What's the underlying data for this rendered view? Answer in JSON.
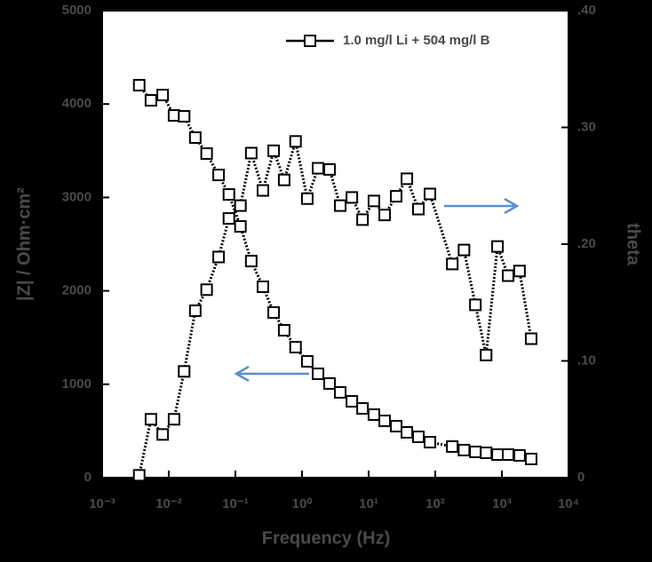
{
  "chart_data": {
    "type": "line",
    "xscale": "log",
    "x_label": "Frequency (Hz)",
    "y_label": "|Z| / Ohm·cm²",
    "y2_label": "theta",
    "legend": "upper right",
    "x": [
      0.0036,
      0.0054,
      0.0081,
      0.012,
      0.017,
      0.025,
      0.037,
      0.056,
      0.08,
      0.119,
      0.173,
      0.259,
      0.375,
      0.54,
      0.8,
      1.2,
      1.74,
      2.59,
      3.75,
      5.6,
      8.1,
      12,
      17.4,
      25.9,
      37.5,
      55.8,
      83.2,
      180,
      270,
      400,
      580,
      860,
      1240,
      1840,
      2750
    ],
    "series": [
      {
        "name": "1.0 mg/l Li + 504 mg/l B",
        "color": "#000000",
        "values": [
          4202,
          4040,
          4097,
          3878,
          3869,
          3641,
          3470,
          3241,
          3032,
          2690,
          2319,
          2044,
          1768,
          1578,
          1397,
          1245,
          1112,
          1008,
          913,
          817,
          741,
          675,
          608,
          551,
          485,
          437,
          380,
          333,
          295,
          276,
          266,
          247,
          247,
          238,
          200
        ]
      },
      {
        "color": "#000000",
        "axis": "y2",
        "values": [
          0.002,
          0.05,
          0.037,
          0.05,
          0.091,
          0.143,
          0.161,
          0.189,
          0.222,
          0.233,
          0.278,
          0.246,
          0.28,
          0.255,
          0.288,
          0.239,
          0.265,
          0.264,
          0.233,
          0.24,
          0.221,
          0.237,
          0.225,
          0.241,
          0.256,
          0.23,
          0.243,
          0.183,
          0.195,
          0.148,
          0.105,
          0.198,
          0.173,
          0.177,
          0.119
        ]
      }
    ],
    "xlim": [
      0.001,
      10000
    ],
    "xticks": [
      {
        "value": 0.001,
        "label": "10⁻³"
      },
      {
        "value": 0.01,
        "label": "10⁻²"
      },
      {
        "value": 0.1,
        "label": "10⁻¹"
      },
      {
        "value": 1,
        "label": "10⁰"
      },
      {
        "value": 10,
        "label": "10¹"
      },
      {
        "value": 100,
        "label": "10²"
      },
      {
        "value": 1000,
        "label": "10³"
      },
      {
        "value": 10000,
        "label": "10⁴"
      }
    ],
    "ylim": [
      0,
      5000
    ],
    "yticks": [
      0,
      1000,
      2000,
      3000,
      4000,
      5000
    ],
    "y2lim": [
      0,
      0.4
    ],
    "y2ticks": [
      0,
      {
        "value": 0.1,
        "label": ".10"
      },
      {
        "value": 0.2,
        "label": ".20"
      },
      {
        "value": 0.3,
        "label": ".30"
      },
      {
        "value": 0.4,
        "label": ".40"
      }
    ]
  }
}
